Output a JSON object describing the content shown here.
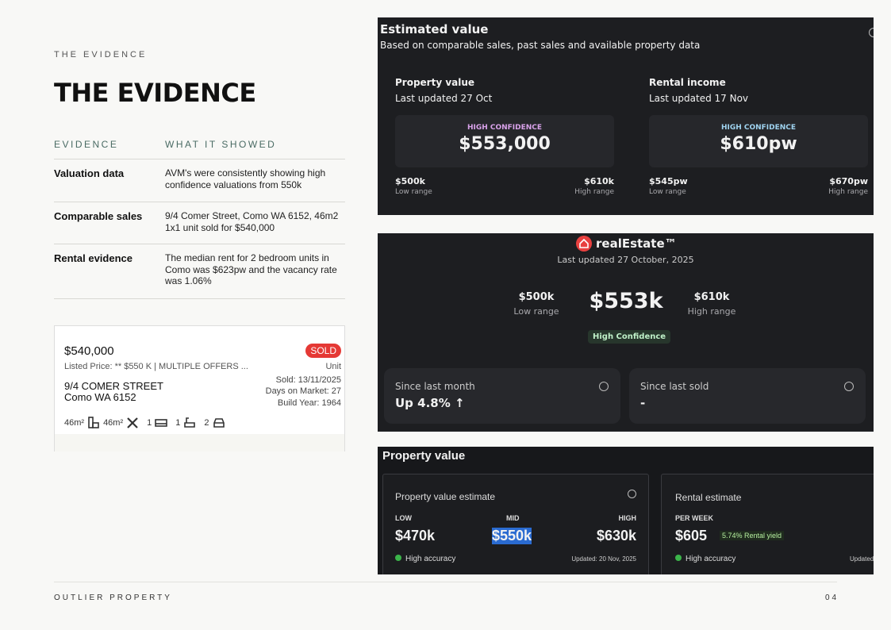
{
  "header": {
    "eyebrow": "THE EVIDENCE",
    "title": "THE EVIDENCE"
  },
  "table": {
    "columns": [
      "EVIDENCE",
      "WHAT IT SHOWED"
    ],
    "rows": [
      [
        "Valuation data",
        "AVM's were consistently showing high confidence valuations from 550k"
      ],
      [
        "Comparable sales",
        "9/4 Comer Street, Como WA 6152, 46m2 1x1 unit sold for $540,000"
      ],
      [
        "Rental evidence",
        "The median rent for 2 bedroom units in Como was $623pw and the vacancy rate was 1.06%"
      ]
    ]
  },
  "listing": {
    "price": "$540,000",
    "badge": "SOLD",
    "listed": "Listed Price: ** $550 K | MULTIPLE OFFERS ...",
    "type": "Unit",
    "address_line1": "9/4 COMER STREET",
    "address_line2": "Como WA 6152",
    "sold": "Sold: 13/11/2025",
    "days_on_market": "Days on Market: 27",
    "build_year": "Build Year: 1964",
    "features": [
      "46m²",
      "46m²",
      "1",
      "1",
      "2"
    ]
  },
  "estimated_value": {
    "title": "Estimated value",
    "subtitle": "Based on comparable sales, past sales and available property data",
    "columns": [
      {
        "label": "Property value",
        "updated": "Last updated 27 Oct",
        "confidence": "HIGH CONFIDENCE",
        "value": "$553,000",
        "low": "$500k",
        "low_label": "Low range",
        "high": "$610k",
        "high_label": "High range"
      },
      {
        "label": "Rental income",
        "updated": "Last updated 17 Nov",
        "confidence": "HIGH CONFIDENCE",
        "value": "$610pw",
        "low": "$545pw",
        "low_label": "Low range",
        "high": "$670pw",
        "high_label": "High range"
      }
    ]
  },
  "real_estimate": {
    "brand": "realEstate™",
    "updated": "Last updated 27 October, 2025",
    "low": "$500k",
    "low_label": "Low range",
    "value": "$553k",
    "high": "$610k",
    "high_label": "High range",
    "confidence": "High Confidence",
    "cards": [
      {
        "label": "Since last month",
        "value": "Up 4.8% ↑"
      },
      {
        "label": "Since last sold",
        "value": "-"
      }
    ]
  },
  "property_value": {
    "title": "Property value",
    "estimate": {
      "label": "Property value estimate",
      "low_label": "LOW",
      "mid_label": "MID",
      "high_label": "HIGH",
      "low": "$470k",
      "mid": "$550k",
      "high": "$630k",
      "accuracy": "High accuracy",
      "updated": "Updated: 20 Nov, 2025"
    },
    "rental": {
      "label": "Rental estimate",
      "period": "PER WEEK",
      "value": "$605",
      "yield": "5.74% Rental yield",
      "accuracy": "High accuracy",
      "updated": "Updated"
    }
  },
  "footer": {
    "brand": "OUTLIER PROPERTY",
    "page": "04"
  }
}
